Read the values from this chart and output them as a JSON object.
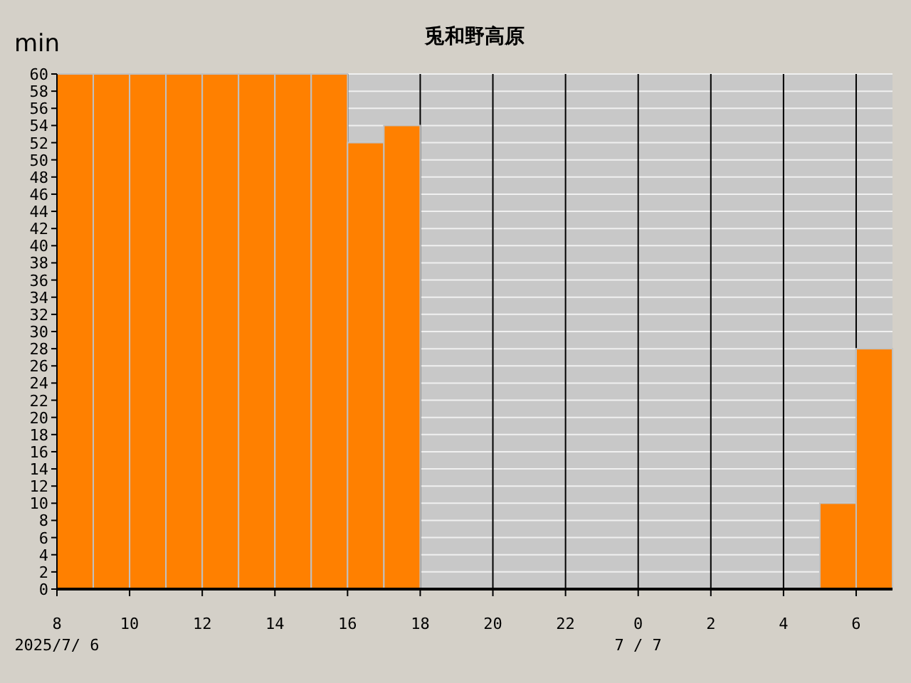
{
  "chart_data": {
    "type": "histogram",
    "title": "兎和野高原",
    "ylabel": "min",
    "bins": [
      "2025-07-06T08:00",
      "2025-07-06T09:00",
      "2025-07-06T10:00",
      "2025-07-06T11:00",
      "2025-07-06T12:00",
      "2025-07-06T13:00",
      "2025-07-06T14:00",
      "2025-07-06T15:00",
      "2025-07-06T16:00",
      "2025-07-06T17:00",
      "2025-07-06T18:00",
      "2025-07-06T19:00",
      "2025-07-06T20:00",
      "2025-07-06T21:00",
      "2025-07-06T22:00",
      "2025-07-06T23:00",
      "2025-07-07T00:00",
      "2025-07-07T01:00",
      "2025-07-07T02:00",
      "2025-07-07T03:00",
      "2025-07-07T04:00",
      "2025-07-07T05:00",
      "2025-07-07T06:00",
      "2025-07-07T07:00"
    ],
    "values": [
      60,
      60,
      60,
      60,
      60,
      60,
      60,
      60,
      52,
      54,
      0,
      0,
      0,
      0,
      0,
      0,
      0,
      0,
      0,
      0,
      0,
      10,
      28
    ],
    "color": "#ff8000",
    "xlim": [
      "2025-07-06T08:00",
      "2025-07-07T07:00"
    ],
    "ylim": [
      0,
      60
    ],
    "xticks": [
      {
        "value": "2025-07-06T08:00",
        "label": "8"
      },
      {
        "value": "2025-07-06T10:00",
        "label": "10"
      },
      {
        "value": "2025-07-06T12:00",
        "label": "12"
      },
      {
        "value": "2025-07-06T14:00",
        "label": "14"
      },
      {
        "value": "2025-07-06T16:00",
        "label": "16"
      },
      {
        "value": "2025-07-06T18:00",
        "label": "18"
      },
      {
        "value": "2025-07-06T20:00",
        "label": "20"
      },
      {
        "value": "2025-07-06T22:00",
        "label": "22"
      },
      {
        "value": "2025-07-07T00:00",
        "label": "0"
      },
      {
        "value": "2025-07-07T02:00",
        "label": "2"
      },
      {
        "value": "2025-07-07T04:00",
        "label": "4"
      },
      {
        "value": "2025-07-07T06:00",
        "label": "6"
      }
    ],
    "yticks": [
      0,
      2,
      4,
      6,
      8,
      10,
      12,
      14,
      16,
      18,
      20,
      22,
      24,
      26,
      28,
      30,
      32,
      34,
      36,
      38,
      40,
      42,
      44,
      46,
      48,
      50,
      52,
      54,
      56,
      58,
      60
    ],
    "annotations": [
      "2025/7/ 6",
      "7 / 7"
    ],
    "grid": true
  }
}
